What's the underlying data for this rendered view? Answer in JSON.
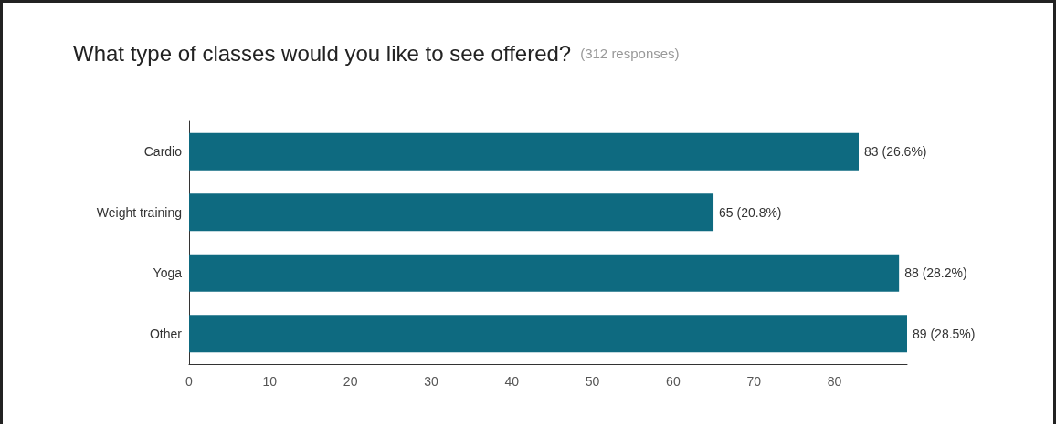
{
  "chart_data": {
    "type": "bar",
    "orientation": "horizontal",
    "title": "What type of classes would you like to see offered?",
    "subtitle": "(312 responses)",
    "categories": [
      "Cardio",
      "Weight training",
      "Yoga",
      "Other"
    ],
    "values": [
      83,
      65,
      88,
      89
    ],
    "color": "#0e6a80",
    "value_labels": [
      "83 (26.6%)",
      "65 (20.8%)",
      "88 (28.2%)",
      "89 (28.5%)"
    ],
    "xlim": [
      0,
      89
    ],
    "xticks": [
      0,
      10,
      20,
      30,
      40,
      50,
      60,
      70,
      80
    ],
    "grid": false
  }
}
